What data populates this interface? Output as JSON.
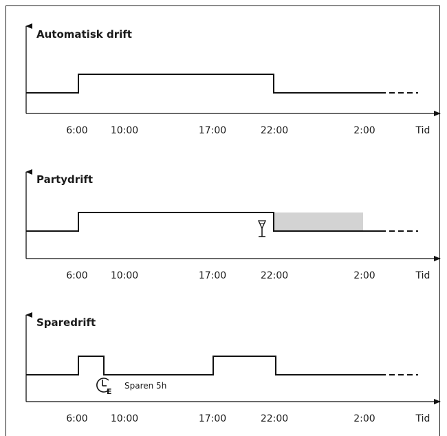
{
  "axis_label": "Tid",
  "tick_labels": [
    "6:00",
    "10:00",
    "17:00",
    "22:00",
    "2:00"
  ],
  "panels": [
    {
      "title": "Automatisk drift"
    },
    {
      "title": "Partydrift"
    },
    {
      "title": "Sparedrift",
      "note": "Sparen 5h",
      "note_icon": "clock-e-icon"
    }
  ],
  "icons": {
    "party": "glass-icon",
    "spare": "clock-e-icon"
  },
  "colors": {
    "line": "#111111",
    "shade": "#d3d3d3"
  }
}
